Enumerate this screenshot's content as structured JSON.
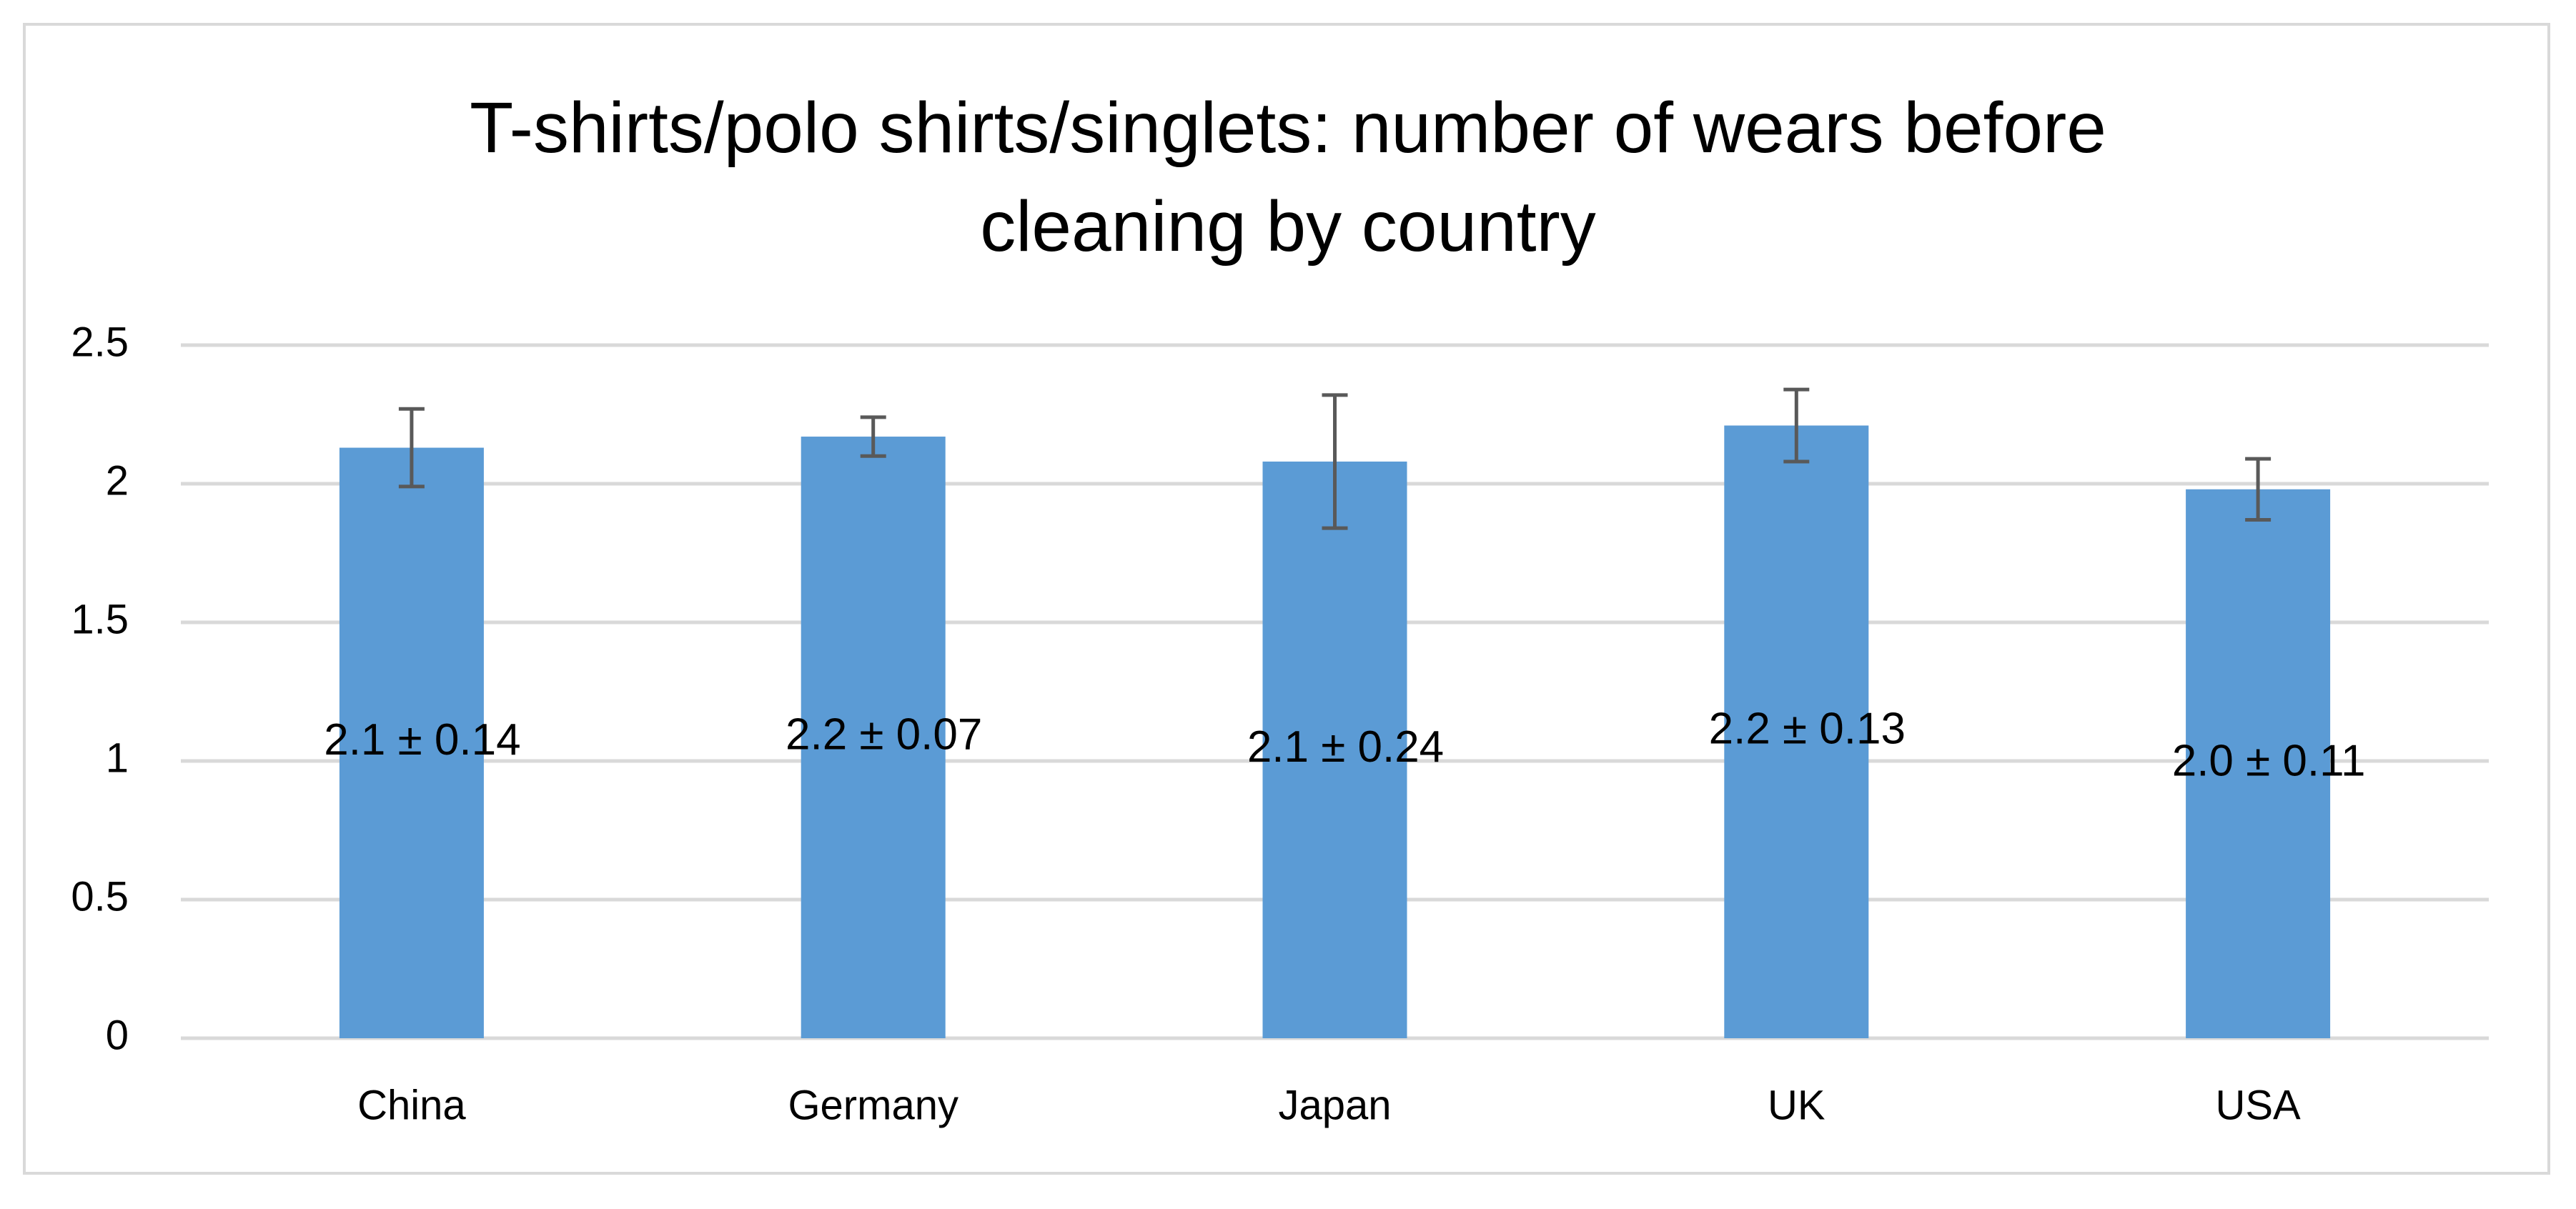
{
  "chart_data": {
    "type": "bar",
    "title": "T-shirts/polo shirts/singlets: number of wears before cleaning by country",
    "categories": [
      "China",
      "Germany",
      "Japan",
      "UK",
      "USA"
    ],
    "values": [
      2.13,
      2.17,
      2.08,
      2.21,
      1.98
    ],
    "errors": [
      0.14,
      0.07,
      0.24,
      0.13,
      0.11
    ],
    "value_labels": [
      "2.1 ± 0.14",
      "2.2 ± 0.07",
      "2.1 ± 0.24",
      "2.2 ± 0.13",
      "2.0 ± 0.11"
    ],
    "color": "#5b9bd5",
    "error_color": "#595959",
    "ylim": [
      0,
      2.5
    ],
    "yticks": [
      0,
      0.5,
      1,
      1.5,
      2,
      2.5
    ],
    "grid": true
  }
}
